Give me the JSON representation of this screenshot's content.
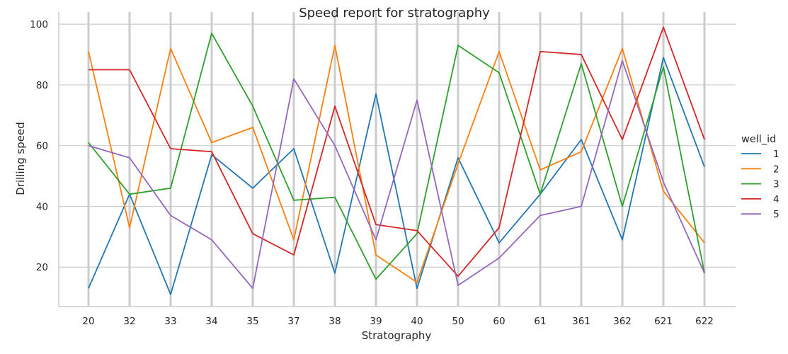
{
  "chart_data": {
    "type": "line",
    "title": "Speed report for stratography",
    "xlabel": "Stratography",
    "ylabel": "Drilling speed",
    "categories": [
      "20",
      "32",
      "33",
      "34",
      "35",
      "37",
      "38",
      "39",
      "40",
      "50",
      "60",
      "61",
      "361",
      "362",
      "621",
      "622"
    ],
    "yticks": [
      20,
      40,
      60,
      80,
      100
    ],
    "ylim": [
      7,
      104
    ],
    "grid": true,
    "legend": {
      "title": "well_id",
      "placement": "right"
    },
    "series": [
      {
        "name": "1",
        "color": "#1f77b4",
        "values": [
          13,
          44,
          11,
          57,
          46,
          59,
          18,
          77,
          13,
          56,
          28,
          44,
          62,
          29,
          89,
          53
        ]
      },
      {
        "name": "2",
        "color": "#ff7f0e",
        "values": [
          91,
          33,
          92,
          61,
          66,
          29,
          93,
          24,
          15,
          54,
          91,
          52,
          58,
          92,
          45,
          28
        ]
      },
      {
        "name": "3",
        "color": "#2ca02c",
        "values": [
          61,
          44,
          46,
          97,
          73,
          42,
          43,
          16,
          31,
          93,
          84,
          44,
          87,
          40,
          86,
          18
        ]
      },
      {
        "name": "4",
        "color": "#d62728",
        "values": [
          85,
          85,
          59,
          58,
          31,
          24,
          73,
          34,
          32,
          17,
          33,
          91,
          90,
          62,
          99,
          62
        ]
      },
      {
        "name": "5",
        "color": "#9467bd",
        "values": [
          60,
          56,
          37,
          29,
          13,
          82,
          60,
          29,
          75,
          14,
          23,
          37,
          40,
          88,
          48,
          18
        ]
      }
    ]
  }
}
